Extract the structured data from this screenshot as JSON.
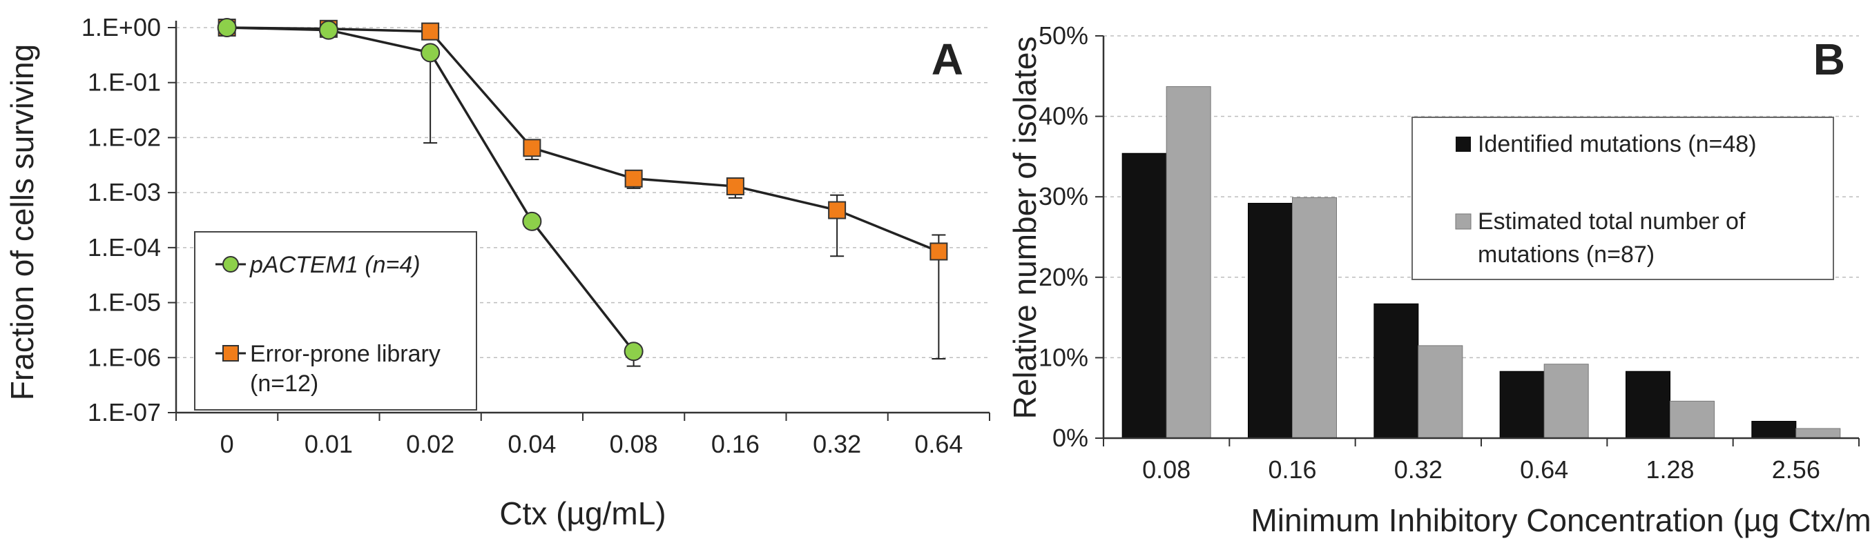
{
  "chart_data": [
    {
      "type": "line",
      "panel_label": "A",
      "xlabel": "Ctx (µg/mL)",
      "ylabel": "Fraction of cells surviving",
      "y_scale": "log",
      "ylim": [
        1e-07,
        1
      ],
      "y_ticks": [
        "1.E+00",
        "1.E-01",
        "1.E-02",
        "1.E-03",
        "1.E-04",
        "1.E-05",
        "1.E-06",
        "1.E-07"
      ],
      "categories": [
        "0",
        "0.01",
        "0.02",
        "0.04",
        "0.08",
        "0.16",
        "0.32",
        "0.64"
      ],
      "grid": "horizontal dashed",
      "legend_position": "lower-left",
      "series": [
        {
          "name": "pACTEM1 (n=4)",
          "marker": "circle",
          "color": "#8DD04A",
          "values": [
            1.0,
            0.9,
            0.35,
            0.0003,
            1.3e-06,
            null,
            null,
            null
          ],
          "error_low": [
            null,
            null,
            0.008,
            null,
            7e-07,
            null,
            null,
            null
          ],
          "error_high": [
            null,
            null,
            null,
            null,
            null,
            null,
            null,
            null
          ]
        },
        {
          "name": "Error-prone library",
          "name_line2": "(n=12)",
          "marker": "square",
          "color": "#F07D1A",
          "values": [
            1.0,
            0.95,
            0.85,
            0.0065,
            0.0018,
            0.0013,
            0.00048,
            8.5e-05
          ],
          "error_low": [
            null,
            null,
            null,
            0.004,
            0.0012,
            0.0008,
            7e-05,
            9.5e-07
          ],
          "error_high": [
            null,
            null,
            null,
            null,
            null,
            null,
            0.0009,
            0.00017
          ]
        }
      ]
    },
    {
      "type": "bar",
      "panel_label": "B",
      "xlabel": "Minimum Inhibitory Concentration (µg Ctx/mL)",
      "ylabel": "Relative number of isolates",
      "ylim": [
        0,
        50
      ],
      "y_ticks": [
        "0%",
        "10%",
        "20%",
        "30%",
        "40%",
        "50%"
      ],
      "categories": [
        "0.08",
        "0.16",
        "0.32",
        "0.64",
        "1.28",
        "2.56"
      ],
      "grid": "horizontal dashed",
      "legend_position": "top-right",
      "series": [
        {
          "name": "Identified mutations (n=48)",
          "color": "#111111",
          "values": [
            35.4,
            29.2,
            16.7,
            8.3,
            8.3,
            2.1
          ]
        },
        {
          "name": "Estimated total number of",
          "name_line2": "mutations (n=87)",
          "color": "#A6A6A6",
          "values": [
            43.7,
            29.9,
            11.5,
            9.2,
            4.6,
            1.2
          ]
        }
      ]
    }
  ]
}
